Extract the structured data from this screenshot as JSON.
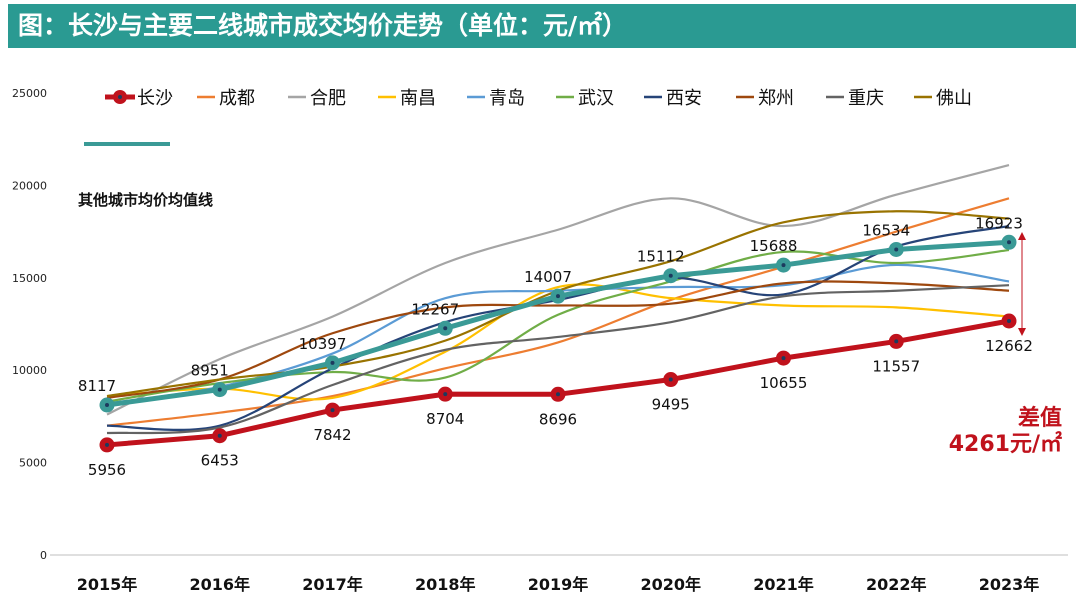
{
  "title": "图：长沙与主要二线城市成交均价走势（单位：元/㎡）",
  "annotations": {
    "avg_line_label": "其他城市均价均值线",
    "diff_title": "差值",
    "diff_value": "4261元/㎡"
  },
  "colors": {
    "title_bg": "#2a9a92",
    "changsha": "#c0121c",
    "average": "#3a9a96",
    "diff_text": "#c0121c"
  },
  "chart_data": {
    "type": "line",
    "title": "图：长沙与主要二线城市成交均价走势（单位：元/㎡）",
    "x": [
      "2015年",
      "2016年",
      "2017年",
      "2018年",
      "2019年",
      "2020年",
      "2021年",
      "2022年",
      "2023年"
    ],
    "ylim": [
      0,
      25000
    ],
    "yticks": [
      0,
      5000,
      10000,
      15000,
      20000,
      25000
    ],
    "legend_position": "top",
    "series": [
      {
        "name": "长沙",
        "color": "#c0121c",
        "values": [
          5956,
          6453,
          7842,
          8704,
          8696,
          9495,
          10655,
          11557,
          12662
        ],
        "labels": true
      },
      {
        "name": "成都",
        "color": "#ed7d31",
        "values": [
          7000,
          7700,
          8600,
          10100,
          11500,
          13800,
          15600,
          17500,
          19300
        ]
      },
      {
        "name": "合肥",
        "color": "#a5a5a5",
        "values": [
          7600,
          10600,
          12900,
          15800,
          17600,
          19300,
          17800,
          19500,
          21100
        ]
      },
      {
        "name": "南昌",
        "color": "#ffc000",
        "values": [
          8600,
          9000,
          8500,
          11000,
          14500,
          13900,
          13500,
          13400,
          12900
        ]
      },
      {
        "name": "青岛",
        "color": "#5b9bd5",
        "values": [
          8200,
          9100,
          10900,
          13900,
          14300,
          14500,
          14600,
          15700,
          14800
        ]
      },
      {
        "name": "武汉",
        "color": "#70ad47",
        "values": [
          8300,
          9300,
          9900,
          9600,
          13000,
          14800,
          16400,
          15800,
          16500
        ]
      },
      {
        "name": "西安",
        "color": "#264478",
        "values": [
          7000,
          7000,
          10100,
          12600,
          13800,
          15000,
          14100,
          16700,
          17800
        ]
      },
      {
        "name": "郑州",
        "color": "#9e480e",
        "values": [
          8500,
          9500,
          12000,
          13400,
          13500,
          13600,
          14700,
          14700,
          14300
        ]
      },
      {
        "name": "重庆",
        "color": "#636363",
        "values": [
          6600,
          6900,
          9200,
          11100,
          11800,
          12600,
          14000,
          14300,
          14600
        ]
      },
      {
        "name": "佛山",
        "color": "#997300",
        "values": [
          8600,
          9500,
          10200,
          11600,
          14300,
          15900,
          18000,
          18600,
          18200
        ]
      },
      {
        "name": "其他城市均价均值线",
        "color": "#3a9a96",
        "values": [
          8117,
          8951,
          10397,
          12267,
          14007,
          15112,
          15688,
          16534,
          16923
        ],
        "labels": true
      }
    ]
  }
}
